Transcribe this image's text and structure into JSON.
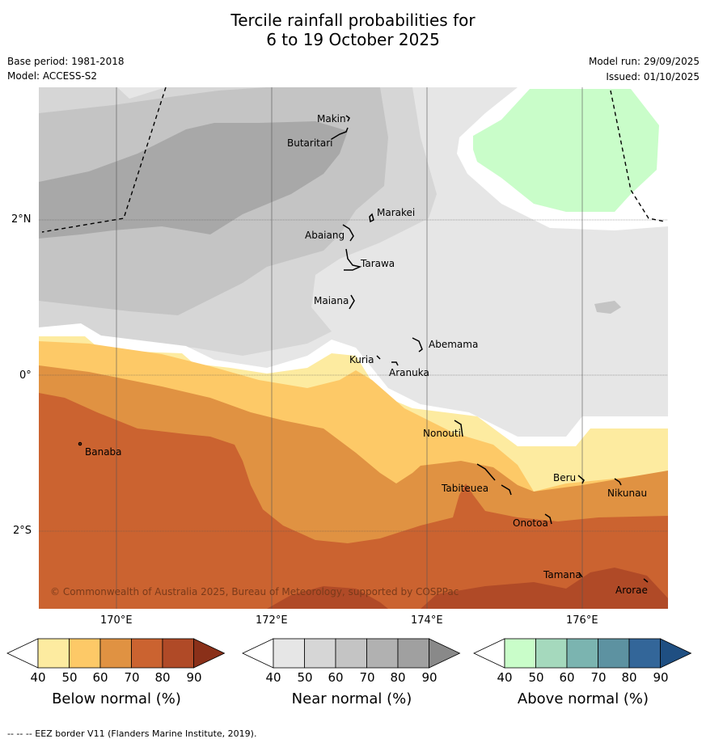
{
  "title_line1": "Tercile rainfall probabilities for",
  "title_line2": "6 to 19 October 2025",
  "base_period": "Base period: 1981-2018",
  "model": "Model: ACCESS-S2",
  "model_run": "Model run: 29/09/2025",
  "issued": "Issued: 01/10/2025",
  "copyright": "© Commonwealth of Australia 2025, Bureau of Meteorology, supported by COSPPac",
  "footnote": "-- -- -- EEZ border V11 (Flanders Marine Institute, 2019).",
  "lat_labels": [
    "2°N",
    "0°",
    "2°S"
  ],
  "lon_labels": [
    "170°E",
    "172°E",
    "174°E",
    "176°E"
  ],
  "places": [
    "Makin",
    "Butaritari",
    "Marakei",
    "Abaiang",
    "Tarawa",
    "Maiana",
    "Abemama",
    "Kuria",
    "Aranuka",
    "Nonouti",
    "Banaba",
    "Beru",
    "Tabiteuea",
    "Nikunau",
    "Onotoa",
    "Tamana",
    "Arorae"
  ],
  "colorbars": [
    {
      "title": "Below normal (%)",
      "ticks": [
        "40",
        "50",
        "60",
        "70",
        "80",
        "90"
      ],
      "colors": [
        "#ffffff",
        "#fdeba0",
        "#fdc967",
        "#e09242",
        "#cb6330",
        "#b04a27",
        "#8a3019"
      ]
    },
    {
      "title": "Near normal (%)",
      "ticks": [
        "40",
        "50",
        "60",
        "70",
        "80",
        "90"
      ],
      "colors": [
        "#ffffff",
        "#e6e6e6",
        "#d6d6d6",
        "#c4c4c4",
        "#b1b1b1",
        "#a0a0a0",
        "#898989"
      ]
    },
    {
      "title": "Above normal (%)",
      "ticks": [
        "40",
        "50",
        "60",
        "70",
        "80",
        "90"
      ],
      "colors": [
        "#ffffff",
        "#c9fdc9",
        "#a5d9bd",
        "#7bb4b0",
        "#5d92a1",
        "#336699",
        "#1f4f82"
      ]
    }
  ]
}
